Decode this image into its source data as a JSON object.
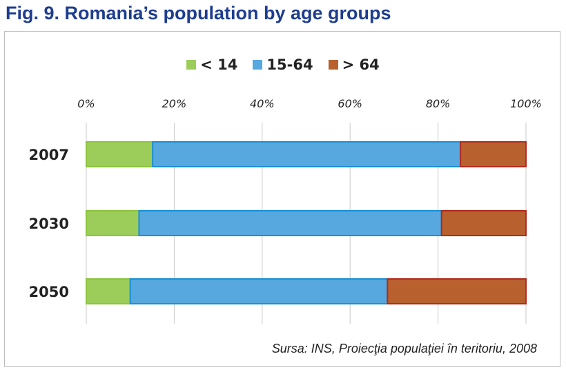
{
  "title": "Fig. 9. Romania’s population by age groups",
  "source": "Sursa: INS, Proiecţia populaţiei în teritoriu, 2008",
  "chart_data": {
    "type": "bar",
    "orientation": "horizontal",
    "stacked": "percent",
    "categories": [
      "2007",
      "2030",
      "2050"
    ],
    "series": [
      {
        "name": "< 14",
        "values": [
          15.1,
          12.0,
          10.0
        ],
        "color": "#9ccc5a"
      },
      {
        "name": "15-64",
        "values": [
          70.0,
          68.8,
          58.5
        ],
        "color": "#56a8de"
      },
      {
        "name": "> 64",
        "values": [
          14.9,
          19.2,
          31.5
        ],
        "color": "#b9602f"
      }
    ],
    "xlim": [
      0,
      100
    ],
    "x_ticks": [
      "0%",
      "20%",
      "40%",
      "60%",
      "80%",
      "100%"
    ],
    "grid": true,
    "legend": "top"
  }
}
